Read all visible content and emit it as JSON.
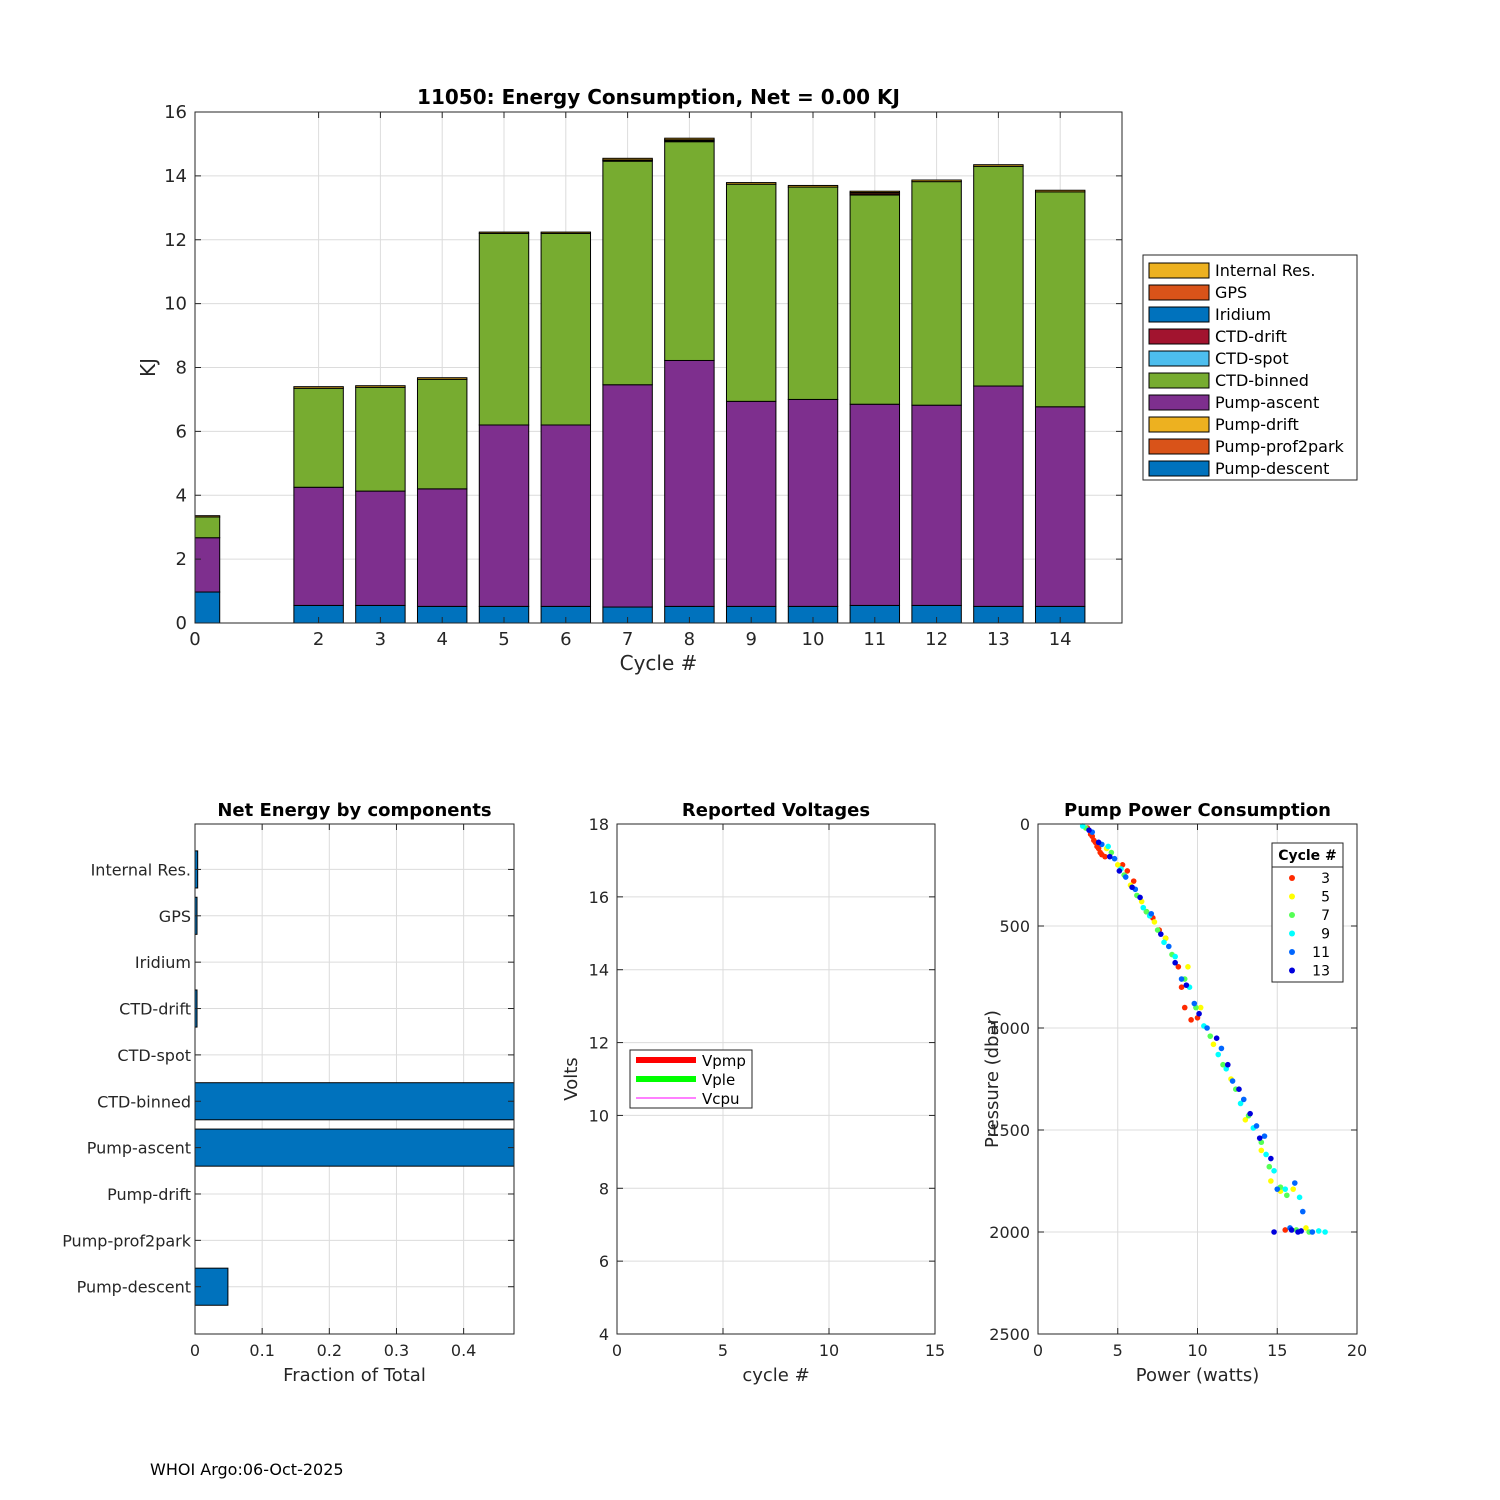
{
  "footer": "WHOI Argo:06-Oct-2025",
  "colors": {
    "internal_res": "#EDB120",
    "gps": "#D95319",
    "iridium": "#0072BD",
    "ctd_drift": "#A2142F",
    "ctd_spot": "#4DBEEE",
    "ctd_binned": "#77AC30",
    "pump_ascent": "#7E2F8E",
    "pump_drift": "#EDB120",
    "pump_prof2park": "#D95319",
    "pump_descent": "#0072BD"
  },
  "chart_data": [
    {
      "id": "energy",
      "type": "bar",
      "stacked": true,
      "title": "11050: Energy Consumption,  Net =   0.00 KJ",
      "xlabel": "Cycle #",
      "ylabel": "KJ",
      "xlim": [
        0,
        15
      ],
      "ylim": [
        0,
        16
      ],
      "xticks": [
        0,
        2,
        3,
        4,
        5,
        6,
        7,
        8,
        9,
        10,
        11,
        12,
        13,
        14
      ],
      "yticks": [
        0,
        2,
        4,
        6,
        8,
        10,
        12,
        14,
        16
      ],
      "grid": true,
      "legend_position": "right",
      "legend": [
        "Internal Res.",
        "GPS",
        "Iridium",
        "CTD-drift",
        "CTD-spot",
        "CTD-binned",
        "Pump-ascent",
        "Pump-drift",
        "Pump-prof2park",
        "Pump-descent"
      ],
      "legend_colors": [
        "internal_res",
        "gps",
        "iridium",
        "ctd_drift",
        "ctd_spot",
        "ctd_binned",
        "pump_ascent",
        "pump_drift",
        "pump_prof2park",
        "pump_descent"
      ],
      "cycles": [
        0,
        2,
        3,
        4,
        5,
        6,
        7,
        8,
        9,
        10,
        11,
        12,
        13,
        14
      ],
      "series": [
        {
          "name": "Pump-descent",
          "color": "pump_descent",
          "values": [
            0.97,
            0.55,
            0.55,
            0.52,
            0.52,
            0.52,
            0.5,
            0.52,
            0.52,
            0.52,
            0.55,
            0.55,
            0.52,
            0.52
          ]
        },
        {
          "name": "Pump-prof2park",
          "color": "pump_prof2park",
          "values": [
            0,
            0,
            0,
            0,
            0,
            0,
            0,
            0,
            0,
            0,
            0,
            0,
            0,
            0
          ]
        },
        {
          "name": "Pump-drift",
          "color": "pump_drift",
          "values": [
            0,
            0,
            0,
            0,
            0,
            0,
            0,
            0,
            0,
            0,
            0,
            0,
            0,
            0
          ]
        },
        {
          "name": "Pump-ascent",
          "color": "pump_ascent",
          "values": [
            1.7,
            3.7,
            3.58,
            3.68,
            5.68,
            5.68,
            6.96,
            7.7,
            6.42,
            6.48,
            6.3,
            6.27,
            6.9,
            6.25
          ]
        },
        {
          "name": "CTD-binned",
          "color": "ctd_binned",
          "values": [
            0.65,
            3.1,
            3.25,
            3.43,
            6.0,
            6.0,
            7.0,
            6.85,
            6.8,
            6.65,
            6.55,
            7.0,
            6.88,
            6.73
          ]
        },
        {
          "name": "CTD-spot",
          "color": "ctd_spot",
          "values": [
            0,
            0,
            0,
            0,
            0,
            0,
            0,
            0,
            0,
            0,
            0,
            0,
            0,
            0
          ]
        },
        {
          "name": "CTD-drift",
          "color": "ctd_drift",
          "values": [
            0,
            0,
            0,
            0,
            0,
            0,
            0.02,
            0.03,
            0,
            0,
            0.04,
            0,
            0,
            0
          ]
        },
        {
          "name": "Iridium",
          "color": "iridium",
          "values": [
            0,
            0,
            0,
            0,
            0,
            0,
            0,
            0,
            0,
            0,
            0,
            0,
            0,
            0
          ]
        },
        {
          "name": "GPS",
          "color": "gps",
          "values": [
            0,
            0,
            0,
            0,
            0,
            0,
            0.02,
            0.03,
            0,
            0,
            0.04,
            0,
            0,
            0
          ]
        },
        {
          "name": "Internal Res.",
          "color": "internal_res",
          "values": [
            0.04,
            0.05,
            0.05,
            0.05,
            0.04,
            0.04,
            0.05,
            0.05,
            0.05,
            0.05,
            0.04,
            0.05,
            0.05,
            0.05
          ]
        }
      ]
    },
    {
      "id": "net",
      "type": "bar",
      "orientation": "horizontal",
      "title": "Net Energy by components",
      "xlabel": "Fraction of Total",
      "xlim": [
        0,
        0.475
      ],
      "xticks": [
        0,
        0.1,
        0.2,
        0.3,
        0.4
      ],
      "xtick_labels": [
        "0",
        "0.1",
        "0.2",
        "0.3",
        "0.4"
      ],
      "grid": true,
      "categories": [
        "Internal Res.",
        "GPS",
        "Iridium",
        "CTD-drift",
        "CTD-spot",
        "CTD-binned",
        "Pump-ascent",
        "Pump-drift",
        "Pump-prof2park",
        "Pump-descent"
      ],
      "values": [
        0.004,
        0.003,
        0.0,
        0.003,
        0.0,
        0.475,
        0.48,
        0.0,
        0.0,
        0.049
      ]
    },
    {
      "id": "voltages",
      "type": "line",
      "title": "Reported Voltages",
      "xlabel": "cycle #",
      "ylabel": "Volts",
      "xlim": [
        0,
        15
      ],
      "ylim": [
        4,
        18
      ],
      "xticks": [
        0,
        5,
        10,
        15
      ],
      "yticks": [
        4,
        6,
        8,
        10,
        12,
        14,
        16,
        18
      ],
      "grid": true,
      "legend_position": "middle-left",
      "series": [
        {
          "name": "Vpmp",
          "color": "#ff0000",
          "values": []
        },
        {
          "name": "Vple",
          "color": "#00ff00",
          "values": []
        },
        {
          "name": "Vcpu",
          "color": "#ff00ff",
          "values": []
        }
      ]
    },
    {
      "id": "pump",
      "type": "scatter",
      "title": "Pump Power Consumption",
      "xlabel": "Power (watts)",
      "ylabel": "Pressure (dbar)",
      "xlim": [
        0,
        20
      ],
      "ylim": [
        0,
        2500
      ],
      "y_reversed": true,
      "xticks": [
        0,
        5,
        10,
        15,
        20
      ],
      "yticks": [
        0,
        500,
        1000,
        1500,
        2000,
        2500
      ],
      "grid": true,
      "legend_title": "Cycle #",
      "legend_position": "top-right",
      "series": [
        {
          "name": "3",
          "color": "#ff2a00",
          "x": [
            3.1,
            3.3,
            3.5,
            3.7,
            3.9,
            3.4,
            3.6,
            3.8,
            4.0,
            4.2,
            5.3,
            5.6,
            6.0,
            6.8,
            7.2,
            7.6,
            8.0,
            8.8,
            9.0,
            9.2,
            9.6,
            10.0,
            15.5
          ],
          "y": [
            20,
            50,
            80,
            110,
            140,
            60,
            90,
            120,
            150,
            160,
            200,
            230,
            280,
            430,
            460,
            520,
            560,
            700,
            800,
            900,
            960,
            950,
            1990
          ]
        },
        {
          "name": "5",
          "color": "#ffff00",
          "x": [
            4.3,
            5.0,
            5.8,
            6.5,
            7.3,
            8.0,
            9.4,
            10.2,
            11.0,
            12.1,
            13.0,
            14.0,
            14.6,
            15.2,
            16.0,
            16.8
          ],
          "y": [
            120,
            200,
            300,
            380,
            480,
            560,
            700,
            900,
            1080,
            1250,
            1450,
            1600,
            1750,
            1800,
            1790,
            1980
          ]
        },
        {
          "name": "7",
          "color": "#55ff55",
          "x": [
            3.0,
            4.6,
            5.4,
            6.2,
            6.8,
            7.5,
            8.4,
            9.2,
            9.9,
            10.8,
            11.6,
            12.4,
            13.2,
            14.0,
            14.5,
            15.2,
            15.6,
            16.2,
            17.0
          ],
          "y": [
            20,
            140,
            250,
            350,
            430,
            520,
            640,
            760,
            900,
            1040,
            1180,
            1300,
            1430,
            1560,
            1680,
            1780,
            1820,
            1990,
            2000
          ]
        },
        {
          "name": "9",
          "color": "#00ffff",
          "x": [
            2.8,
            4.4,
            5.2,
            6.6,
            7.0,
            7.9,
            8.6,
            9.5,
            10.4,
            11.3,
            11.8,
            12.7,
            13.5,
            14.3,
            14.8,
            15.5,
            16.4,
            17.6,
            18.0
          ],
          "y": [
            10,
            110,
            220,
            410,
            450,
            580,
            650,
            800,
            990,
            1130,
            1200,
            1370,
            1490,
            1620,
            1700,
            1790,
            1830,
            1995,
            2000
          ]
        },
        {
          "name": "11",
          "color": "#0066ff",
          "x": [
            3.4,
            4.0,
            4.8,
            5.5,
            6.1,
            7.1,
            8.2,
            9.0,
            9.8,
            10.6,
            11.5,
            12.2,
            12.9,
            13.7,
            14.2,
            15.0,
            15.8,
            16.1,
            16.6,
            17.2
          ],
          "y": [
            40,
            100,
            170,
            260,
            320,
            440,
            600,
            760,
            880,
            1000,
            1100,
            1260,
            1350,
            1480,
            1530,
            1790,
            1980,
            1760,
            1900,
            2000
          ]
        },
        {
          "name": "13",
          "color": "#0000dd",
          "x": [
            3.2,
            3.8,
            4.5,
            5.1,
            5.9,
            6.4,
            7.7,
            8.6,
            9.3,
            10.1,
            11.2,
            11.9,
            12.6,
            13.3,
            13.9,
            14.6,
            14.8,
            15.9,
            16.3,
            16.5
          ],
          "y": [
            30,
            90,
            160,
            230,
            310,
            360,
            540,
            680,
            790,
            930,
            1050,
            1180,
            1300,
            1420,
            1540,
            1640,
            2000,
            1990,
            2000,
            1995
          ]
        }
      ]
    }
  ]
}
